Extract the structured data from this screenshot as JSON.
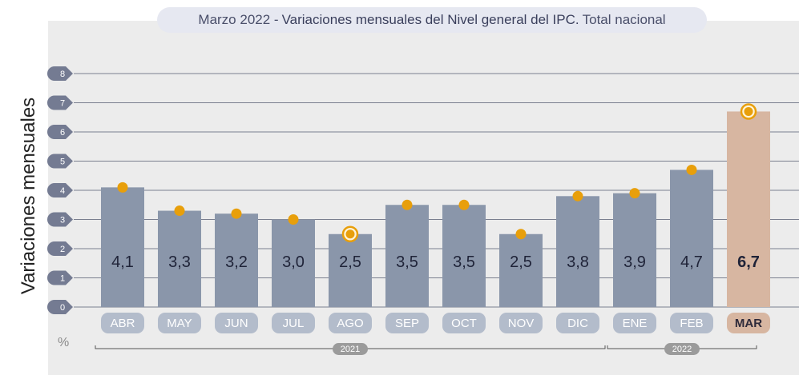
{
  "title": {
    "prefix": "Marzo 2022 -",
    "main": "Variaciones mensuales del Nivel general del IPC.",
    "suffix": "Total nacional"
  },
  "chart_data": {
    "type": "bar",
    "ylabel": "Variaciones mensuales",
    "unit": "%",
    "ylim": [
      0,
      8
    ],
    "yticks": [
      "0",
      "1",
      "2",
      "3",
      "4",
      "5",
      "6",
      "7",
      "8"
    ],
    "categories": [
      "ABR",
      "MAY",
      "JUN",
      "JUL",
      "AGO",
      "SEP",
      "OCT",
      "NOV",
      "DIC",
      "ENE",
      "FEB",
      "MAR"
    ],
    "values": [
      4.1,
      3.3,
      3.2,
      3.0,
      2.5,
      3.5,
      3.5,
      2.5,
      3.8,
      3.9,
      4.7,
      6.7
    ],
    "value_labels": [
      "4,1",
      "3,3",
      "3,2",
      "3,0",
      "2,5",
      "3,5",
      "3,5",
      "2,5",
      "3,8",
      "3,9",
      "4,7",
      "6,7"
    ],
    "highlighted_points": [
      "AGO",
      "MAR"
    ],
    "highlighted_bar": "MAR",
    "year_groups": [
      {
        "label": "2021",
        "from": "ABR",
        "to": "DIC"
      },
      {
        "label": "2022",
        "from": "ENE",
        "to": "MAR"
      }
    ],
    "colors": {
      "bar": "#8a96aa",
      "bar_highlight": "#d7b6a1",
      "dot": "#e89f0b",
      "grid": "#7a7f8f",
      "tick_badge": "#747b92",
      "month_badge": "#b3bccb",
      "month_badge_highlight": "#d7b6a1",
      "year_badge": "#9b9b9b"
    }
  }
}
